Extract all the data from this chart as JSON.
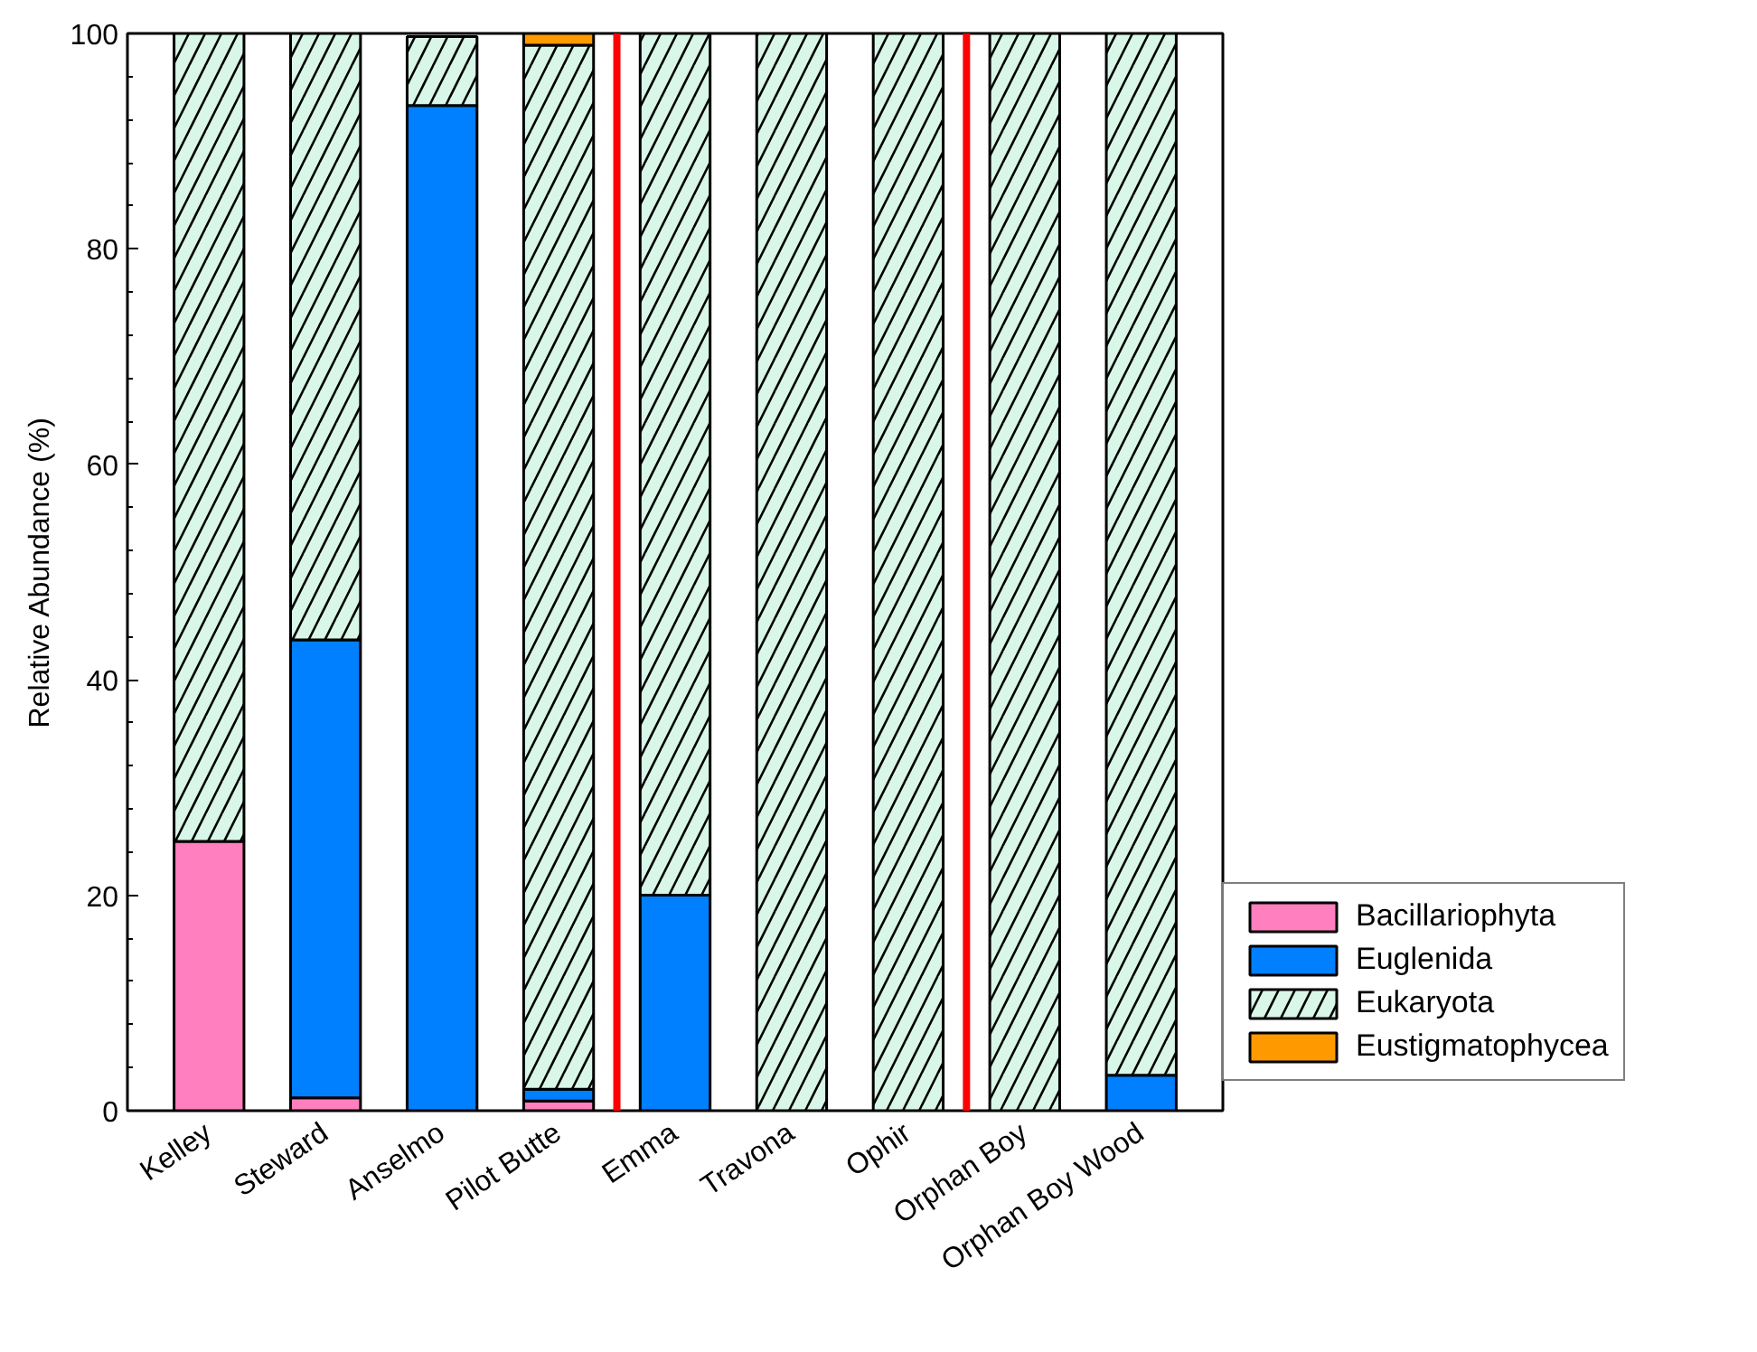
{
  "chart_data": {
    "type": "bar",
    "stacked": true,
    "ylabel": "Relative Abundance (%)",
    "categories": [
      "Kelley",
      "Steward",
      "Anselmo",
      "Pilot Butte",
      "Emma",
      "Travona",
      "Ophir",
      "Orphan Boy",
      "Orphan Boy Wood"
    ],
    "series": [
      {
        "name": "Bacillariophyta",
        "color": "#ff7fbf",
        "values": [
          25,
          1.2,
          0,
          0.9,
          0,
          0,
          0,
          0,
          0
        ]
      },
      {
        "name": "Euglenida",
        "color": "#007fff",
        "values": [
          0,
          42.5,
          93.3,
          1.1,
          20,
          0,
          0,
          0,
          3.3
        ]
      },
      {
        "name": "Eukaryota",
        "color": "#d9f7e8",
        "values": [
          75,
          56.3,
          6.4,
          96.9,
          80,
          100,
          100,
          100,
          96.7
        ]
      },
      {
        "name": "Eustigmatophycea",
        "color": "#ff9900",
        "values": [
          0,
          0,
          0,
          1.1,
          0,
          0,
          0,
          0,
          0
        ]
      }
    ],
    "ylim": [
      0,
      100
    ],
    "yticks": [
      0,
      20,
      40,
      60,
      80,
      100
    ],
    "grid": false,
    "legend": "bottom right"
  }
}
